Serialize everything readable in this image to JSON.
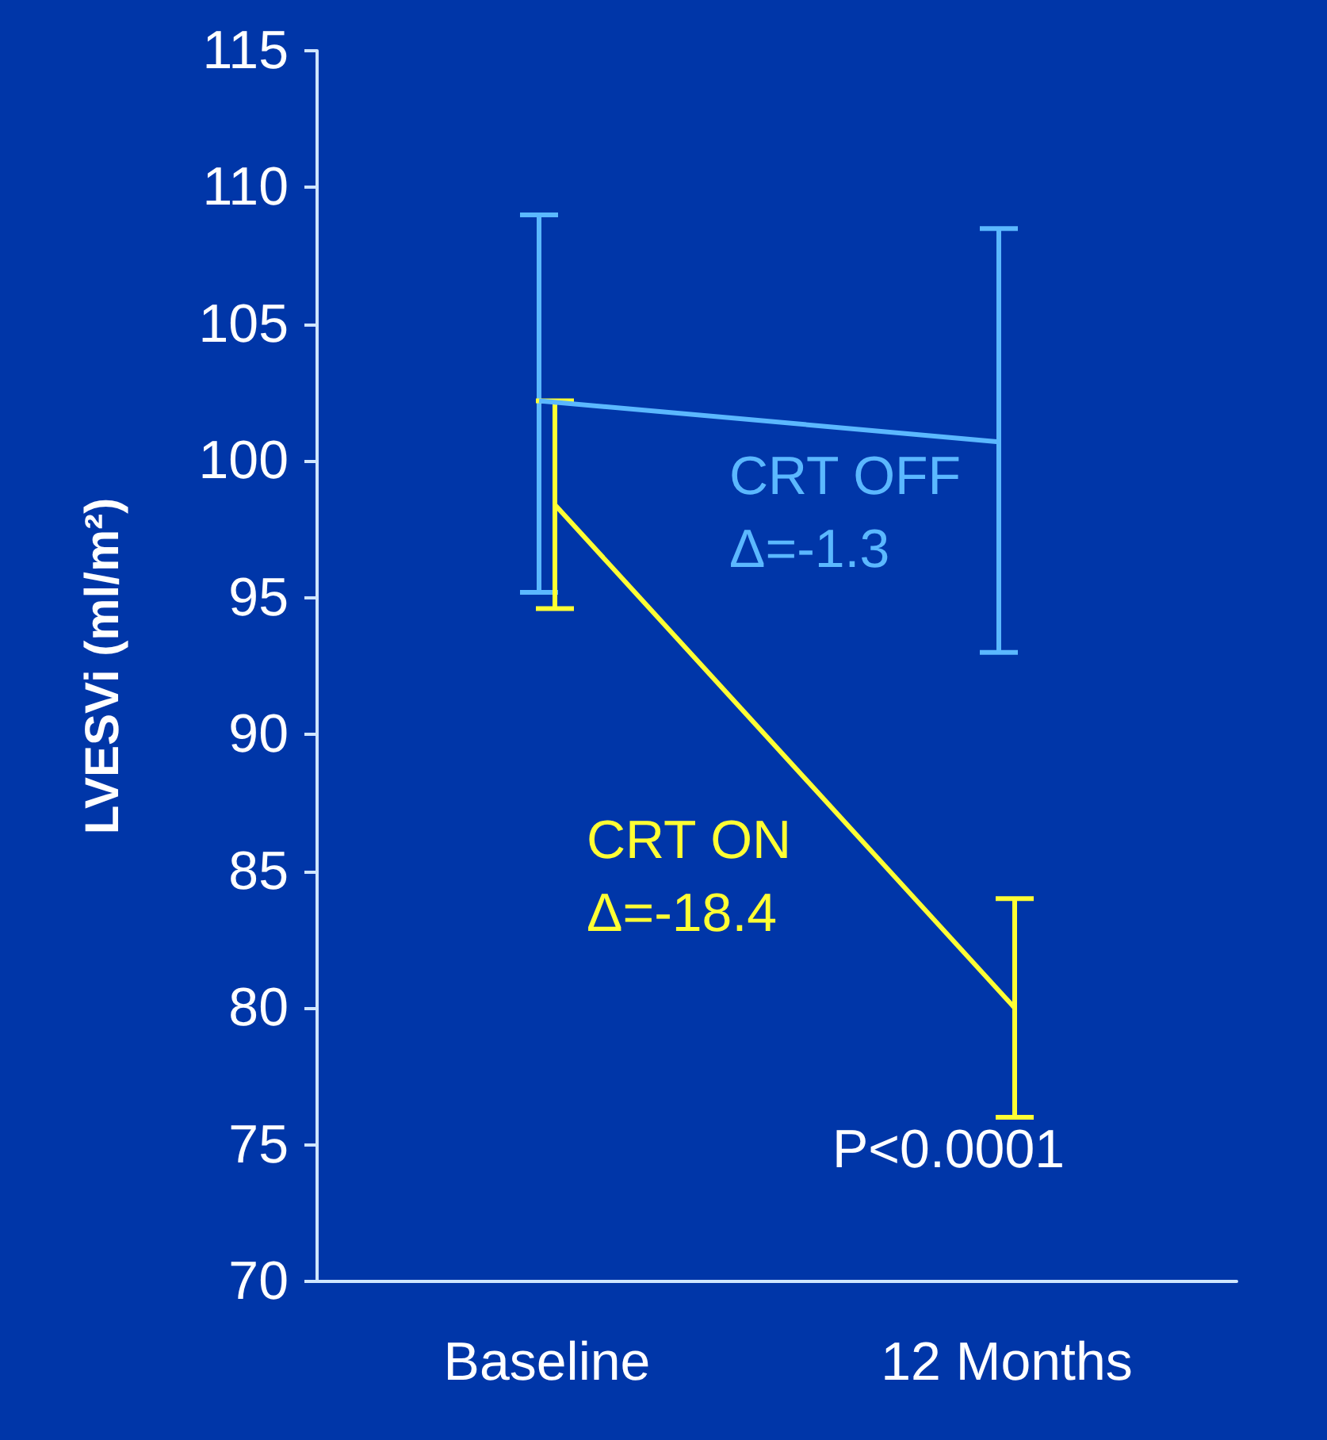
{
  "chart_data": {
    "type": "line",
    "ylabel": "LVESVi (ml/m²)",
    "categories": [
      "Baseline",
      "12 Months"
    ],
    "series": [
      {
        "name": "CRT OFF",
        "color": "#5bb8ff",
        "values": [
          102.2,
          100.7
        ],
        "errors": [
          [
            95.2,
            109.0
          ],
          [
            93.0,
            108.5
          ]
        ]
      },
      {
        "name": "CRT ON",
        "color": "#ffff33",
        "values": [
          98.4,
          80.0
        ],
        "errors": [
          [
            94.6,
            102.2
          ],
          [
            76.0,
            84.0
          ]
        ]
      }
    ],
    "annotations": [
      "Δ=-1.3",
      "Δ=-18.4",
      "P<0.0001"
    ],
    "ylim": [
      70,
      115
    ],
    "yticks": [
      70,
      75,
      80,
      85,
      90,
      95,
      100,
      105,
      110,
      115
    ],
    "grid": false,
    "legend": false,
    "marker": "none",
    "line_style": "solid"
  }
}
